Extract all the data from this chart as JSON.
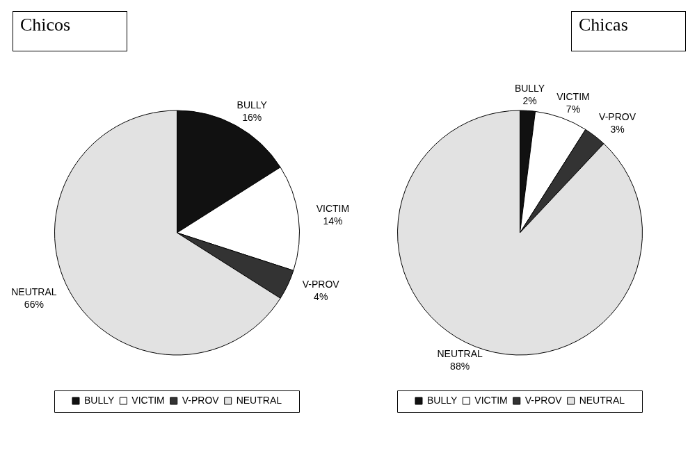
{
  "chart_data": [
    {
      "type": "pie",
      "title": "Chicos",
      "categories": [
        "BULLY",
        "VICTIM",
        "V-PROV",
        "NEUTRAL"
      ],
      "values": [
        16,
        14,
        4,
        66
      ],
      "value_labels": [
        "16%",
        "14%",
        "4%",
        "66%"
      ],
      "colors": [
        "#111111",
        "#ffffff",
        "#333333",
        "#e2e2e2"
      ],
      "legend": "bottom"
    },
    {
      "type": "pie",
      "title": "Chicas",
      "categories": [
        "BULLY",
        "VICTIM",
        "V-PROV",
        "NEUTRAL"
      ],
      "values": [
        2,
        7,
        3,
        88
      ],
      "value_labels": [
        "2%",
        "7%",
        "3%",
        "88%"
      ],
      "colors": [
        "#111111",
        "#ffffff",
        "#333333",
        "#e2e2e2"
      ],
      "legend": "bottom"
    }
  ]
}
